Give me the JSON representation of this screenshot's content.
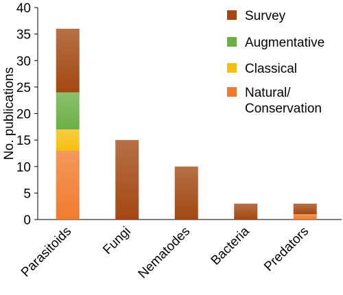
{
  "chart_data": {
    "type": "bar",
    "stacked": true,
    "title": "",
    "xlabel": "",
    "ylabel": "No. publications",
    "ylim": [
      0,
      40
    ],
    "yticks": [
      0,
      5,
      10,
      15,
      20,
      25,
      30,
      35,
      40
    ],
    "grid": false,
    "legend_placement": "top-right",
    "categories": [
      "Parasitoids",
      "Fungi",
      "Nematodes",
      "Bacteria",
      "Predators"
    ],
    "series": [
      {
        "name": "Natural/\nConservation",
        "legend_lines": [
          "Natural/",
          "Conservation"
        ],
        "color": "#f07b2e",
        "values": [
          13,
          0,
          0,
          0,
          1
        ]
      },
      {
        "name": "Classical",
        "legend_lines": [
          "Classical"
        ],
        "color": "#f5bf0f",
        "values": [
          4,
          0,
          0,
          0,
          0
        ]
      },
      {
        "name": "Augmentative",
        "legend_lines": [
          "Augmentative"
        ],
        "color": "#6aaf44",
        "values": [
          7,
          0,
          0,
          0,
          0
        ]
      },
      {
        "name": "Survey",
        "legend_lines": [
          "Survey"
        ],
        "color": "#a34812",
        "values": [
          12,
          15,
          10,
          3,
          2
        ]
      }
    ],
    "legend_order": [
      "Survey",
      "Augmentative",
      "Classical",
      "Natural/\nConservation"
    ]
  }
}
